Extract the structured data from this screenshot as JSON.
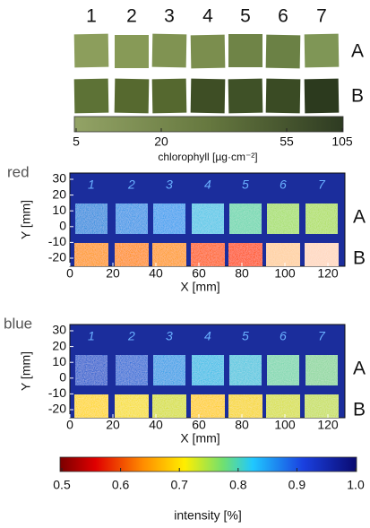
{
  "columns": [
    "1",
    "2",
    "3",
    "4",
    "5",
    "6",
    "7"
  ],
  "rows": [
    "A",
    "B"
  ],
  "chlorophyll_scale": {
    "label": "chlorophyll [µg·cm⁻²]",
    "ticks": [
      "5",
      "20",
      "55",
      "105"
    ]
  },
  "panels": [
    {
      "title": "red",
      "y_label": "Y [mm]",
      "x_label": "X [mm]",
      "yticks": [
        "30",
        "20",
        "10",
        "0",
        "-10",
        "-20"
      ],
      "xticks": [
        "0",
        "20",
        "40",
        "60",
        "80",
        "100",
        "120"
      ]
    },
    {
      "title": "blue",
      "y_label": "Y [mm]",
      "x_label": "X [mm]",
      "yticks": [
        "30",
        "20",
        "10",
        "0",
        "-10",
        "-20"
      ],
      "xticks": [
        "0",
        "20",
        "40",
        "60",
        "80",
        "100",
        "120"
      ]
    }
  ],
  "intensity_scale": {
    "label": "intensity [%]",
    "ticks": [
      "0.5",
      "0.6",
      "0.7",
      "0.8",
      "0.9",
      "1.0"
    ]
  }
}
